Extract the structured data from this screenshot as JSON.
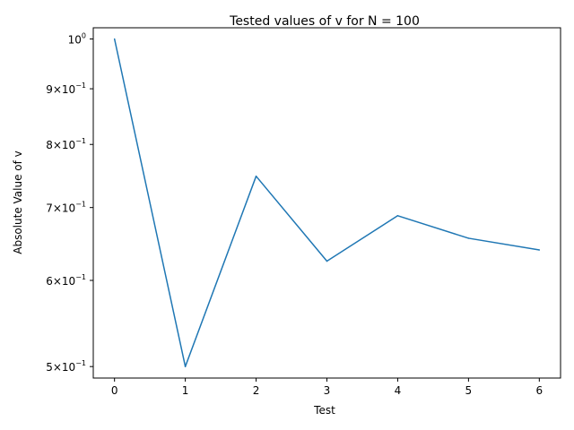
{
  "chart_data": {
    "type": "line",
    "title": "Tested values of v for N = 100",
    "xlabel": "Test",
    "ylabel": "Absolute Value of v",
    "yscale": "log",
    "grid": false,
    "xlim": [
      -0.3,
      6.3
    ],
    "ylim": [
      0.488,
      1.024
    ],
    "x_ticks": [
      0,
      1,
      2,
      3,
      4,
      5,
      6
    ],
    "y_ticks": [
      {
        "value": 1.0,
        "base": "10",
        "exp": "0"
      },
      {
        "value": 0.9,
        "base": "9×10",
        "exp": "−1"
      },
      {
        "value": 0.8,
        "base": "8×10",
        "exp": "−1"
      },
      {
        "value": 0.7,
        "base": "7×10",
        "exp": "−1"
      },
      {
        "value": 0.6,
        "base": "6×10",
        "exp": "−1"
      },
      {
        "value": 0.5,
        "base": "5×10",
        "exp": "−1"
      }
    ],
    "series": [
      {
        "color": "#1f77b4",
        "x": [
          0,
          1,
          2,
          3,
          4,
          5,
          6
        ],
        "y": [
          1.0,
          0.5,
          0.748,
          0.625,
          0.688,
          0.656,
          0.64
        ]
      }
    ]
  }
}
